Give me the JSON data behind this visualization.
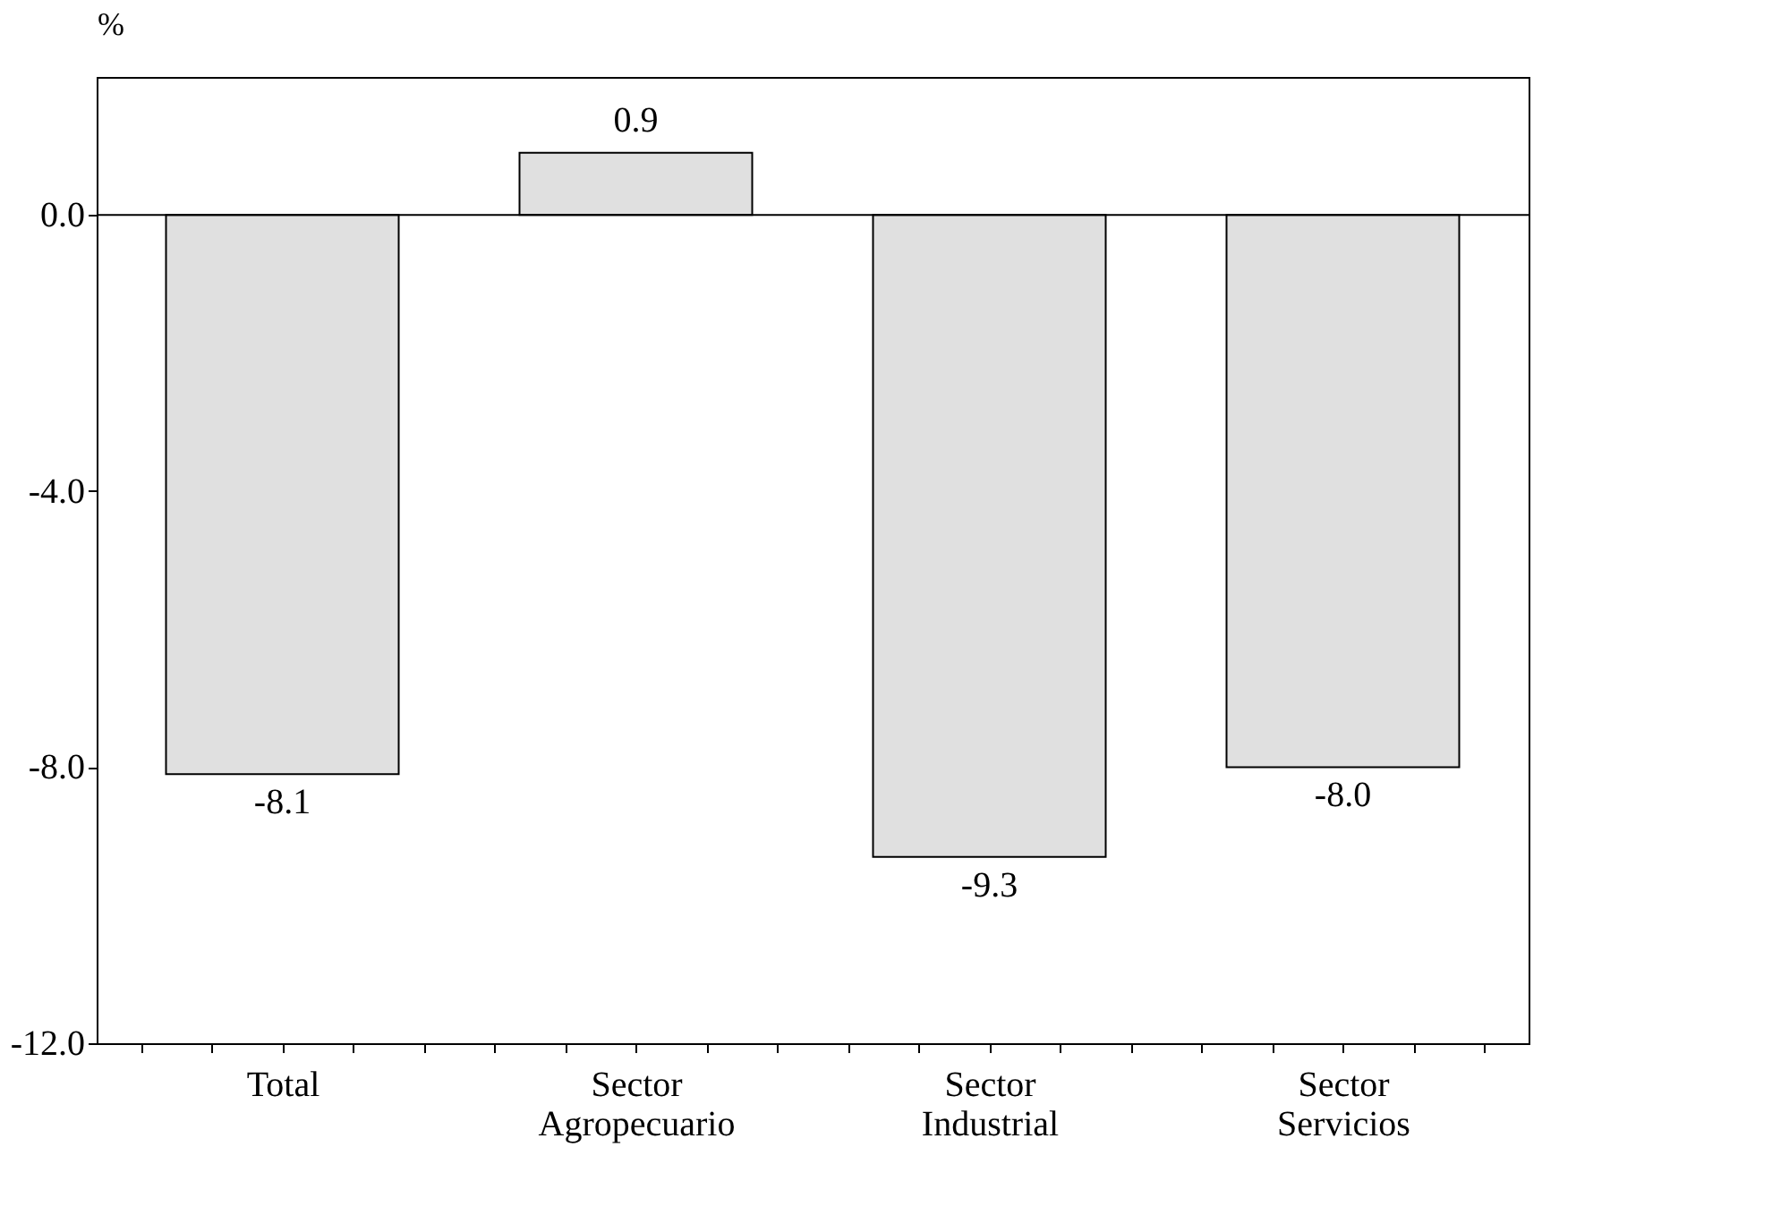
{
  "chart_data": {
    "type": "bar",
    "ylabel": "%",
    "categories": [
      "Total",
      "Sector Agropecuario",
      "Sector Industrial",
      "Sector Servicios"
    ],
    "values": [
      -8.1,
      0.9,
      -9.3,
      -8.0
    ],
    "color": "#e0e0e0",
    "ylim": [
      -12,
      2
    ],
    "yticks": [
      {
        "value": -12,
        "label": "-12.0"
      },
      {
        "value": -8,
        "label": "-8.0"
      },
      {
        "value": -4,
        "label": "-4.0"
      },
      {
        "value": 0,
        "label": "0.0"
      }
    ],
    "ref_lines": [
      {
        "axis": "y",
        "value": 0
      }
    ],
    "value_labels": [
      "-8.1",
      "0.9",
      "-9.3",
      "-8.0"
    ],
    "grid": false
  }
}
